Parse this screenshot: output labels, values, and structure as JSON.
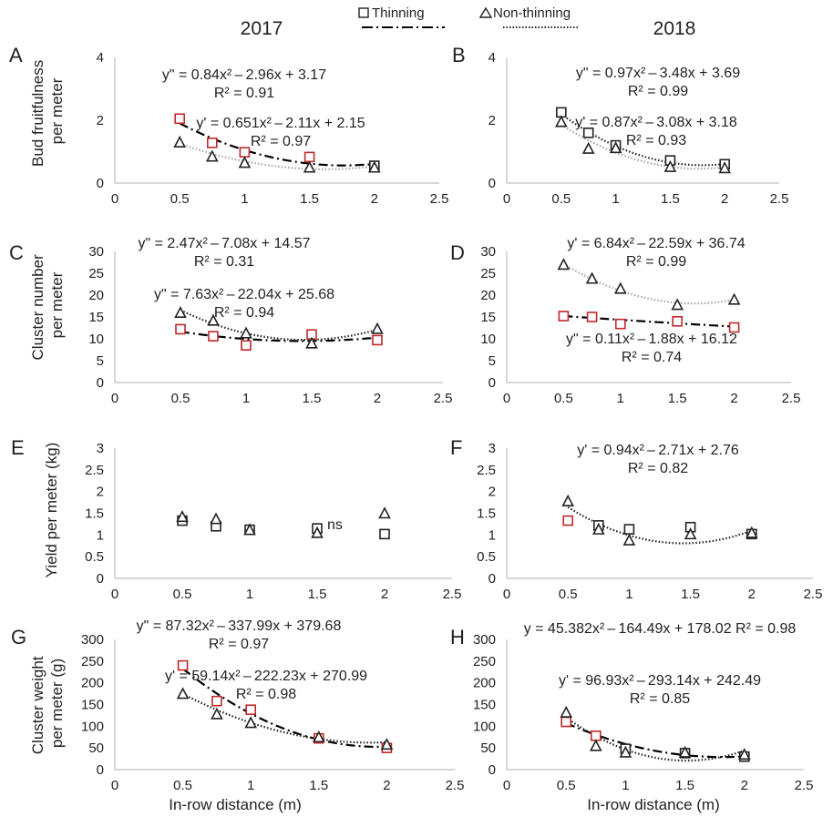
{
  "header": {
    "year_left": "2017",
    "year_right": "2018",
    "legend": [
      {
        "label": "Thinning",
        "marker": "square",
        "line": "dashdot"
      },
      {
        "label": "Non-thinning",
        "marker": "triangle",
        "line": "dotted"
      }
    ]
  },
  "colors": {
    "thinning_highlight": "#c0282a",
    "marker_default": "#222222",
    "trend_thinning": "#000000",
    "trend_nonthinning_grey": "#a6a6a6",
    "trend_nonthinning_dark": "#222222"
  },
  "xlabel": "In-row distance (m)",
  "ylabels": {
    "row1": [
      "Bud fruitfulness",
      "per meter"
    ],
    "row2": [
      "Cluster number",
      "per meter"
    ],
    "row3": [
      "Yield per meter (kg)"
    ],
    "row4": [
      "Cluster weight",
      "per meter (g)"
    ]
  },
  "chart_data": [
    {
      "panel": "A",
      "type": "scatter",
      "xlim": [
        0,
        2.5
      ],
      "ylim": [
        0,
        4
      ],
      "xticks": [
        "0",
        "0.5",
        "1",
        "1.5",
        "2",
        "2.5"
      ],
      "yticks": [
        "0",
        "2",
        "4"
      ],
      "series": [
        {
          "name": "Thinning",
          "marker": "square",
          "x": [
            0.5,
            0.75,
            1,
            1.5,
            2
          ],
          "y": [
            2.05,
            1.28,
            0.98,
            0.83,
            0.55
          ],
          "highlight": [
            true,
            true,
            true,
            true,
            false
          ],
          "trend": {
            "a": 0.84,
            "b": -2.96,
            "c": 3.17,
            "style": "dashdot",
            "color": "#000000"
          }
        },
        {
          "name": "Non-thinning",
          "marker": "triangle",
          "x": [
            0.5,
            0.75,
            1,
            1.5,
            2
          ],
          "y": [
            1.3,
            0.85,
            0.65,
            0.5,
            0.5
          ],
          "trend": {
            "a": 0.651,
            "b": -2.11,
            "c": 2.15,
            "style": "dotted",
            "color": "#a6a6a6"
          }
        }
      ],
      "equations": [
        {
          "eq": "y\" = 0.84x² – 2.96x + 3.17",
          "r2": "R² = 0.91"
        },
        {
          "eq": "y' = 0.651x² – 2.11x + 2.15",
          "r2": "R² = 0.97"
        }
      ]
    },
    {
      "panel": "B",
      "type": "scatter",
      "xlim": [
        0,
        2.5
      ],
      "ylim": [
        0,
        4
      ],
      "xticks": [
        "0",
        "0.5",
        "1",
        "1.5",
        "2",
        "2.5"
      ],
      "yticks": [
        "0",
        "2",
        "4"
      ],
      "series": [
        {
          "name": "Thinning",
          "marker": "square",
          "x": [
            0.5,
            0.75,
            1,
            1.5,
            2
          ],
          "y": [
            2.25,
            1.6,
            1.2,
            0.72,
            0.6
          ],
          "trend": {
            "a": 0.97,
            "b": -3.48,
            "c": 3.69,
            "style": "dotted",
            "color": "#222222"
          }
        },
        {
          "name": "Non-thinning",
          "marker": "triangle",
          "x": [
            0.5,
            0.75,
            1,
            1.5,
            2
          ],
          "y": [
            1.95,
            1.1,
            1.12,
            0.52,
            0.48
          ],
          "trend": {
            "a": 0.87,
            "b": -3.08,
            "c": 3.18,
            "style": "dotted",
            "color": "#a6a6a6"
          }
        }
      ],
      "equations": [
        {
          "eq": "y\" = 0.97x² – 3.48x + 3.69",
          "r2": "R² = 0.99"
        },
        {
          "eq": "y' = 0.87x² – 3.08x + 3.18",
          "r2": "R² = 0.93"
        }
      ]
    },
    {
      "panel": "C",
      "type": "scatter",
      "xlim": [
        0,
        2.5
      ],
      "ylim": [
        0,
        30
      ],
      "xticks": [
        "0",
        "0.5",
        "1",
        "1.5",
        "2",
        "2.5"
      ],
      "yticks": [
        "0",
        "5",
        "10",
        "15",
        "20",
        "25",
        "30"
      ],
      "series": [
        {
          "name": "Thinning",
          "marker": "square",
          "x": [
            0.5,
            0.75,
            1,
            1.5,
            2
          ],
          "y": [
            12.2,
            10.6,
            8.5,
            11,
            9.7
          ],
          "highlight": [
            true,
            true,
            true,
            true,
            true
          ],
          "trend": {
            "a": 2.47,
            "b": -7.08,
            "c": 14.57,
            "style": "dashdot",
            "color": "#000000"
          }
        },
        {
          "name": "Non-thinning",
          "marker": "triangle",
          "x": [
            0.5,
            0.75,
            1,
            1.5,
            2
          ],
          "y": [
            16,
            14.2,
            11.3,
            9,
            12.3
          ],
          "trend": {
            "a": 7.63,
            "b": -22.04,
            "c": 25.68,
            "style": "dotted",
            "color": "#222222"
          }
        }
      ],
      "equations": [
        {
          "eq": "y\" = 2.47x² – 7.08x + 14.57",
          "r2": "R² = 0.31"
        },
        {
          "eq": "y\" = 7.63x² – 22.04x + 25.68",
          "r2": "R² = 0.94"
        }
      ]
    },
    {
      "panel": "D",
      "type": "scatter",
      "xlim": [
        0,
        2.5
      ],
      "ylim": [
        0,
        30
      ],
      "xticks": [
        "0",
        "0.5",
        "1",
        "1.5",
        "2",
        "2.5"
      ],
      "yticks": [
        "0",
        "5",
        "10",
        "15",
        "20",
        "25",
        "30"
      ],
      "series": [
        {
          "name": "Thinning",
          "marker": "square",
          "x": [
            0.5,
            0.75,
            1,
            1.5,
            2
          ],
          "y": [
            15.2,
            15,
            13.4,
            14,
            12.6
          ],
          "highlight": [
            true,
            true,
            true,
            true,
            true
          ],
          "trend": {
            "a": 0.11,
            "b": -1.88,
            "c": 16.12,
            "style": "dashdot",
            "color": "#000000"
          }
        },
        {
          "name": "Non-thinning",
          "marker": "triangle",
          "x": [
            0.5,
            0.75,
            1,
            1.5,
            2
          ],
          "y": [
            27,
            23.8,
            21.5,
            17.8,
            19
          ],
          "trend": {
            "a": 6.84,
            "b": -22.59,
            "c": 36.74,
            "style": "dotted",
            "color": "#a6a6a6"
          }
        }
      ],
      "equations": [
        {
          "eq": "y' = 6.84x² – 22.59x + 36.74",
          "r2": "R² = 0.99"
        },
        {
          "eq": "y\" = 0.11x² – 1.88x + 16.12",
          "r2": "R² = 0.74"
        }
      ]
    },
    {
      "panel": "E",
      "type": "scatter",
      "xlim": [
        0,
        2.5
      ],
      "ylim": [
        0,
        3
      ],
      "xticks": [
        "0",
        "0.5",
        "1",
        "1.5",
        "2",
        "2.5"
      ],
      "yticks": [
        "0",
        "0.5",
        "1",
        "1.5",
        "2",
        "2.5",
        "3"
      ],
      "series": [
        {
          "name": "Thinning",
          "marker": "square",
          "x": [
            0.5,
            0.75,
            1,
            1.5,
            2
          ],
          "y": [
            1.33,
            1.2,
            1.12,
            1.15,
            1.02
          ]
        },
        {
          "name": "Non-thinning",
          "marker": "triangle",
          "x": [
            0.5,
            0.75,
            1,
            1.5,
            2
          ],
          "y": [
            1.42,
            1.37,
            1.12,
            1.05,
            1.5
          ]
        }
      ],
      "annotation": "ns",
      "equations": []
    },
    {
      "panel": "F",
      "type": "scatter",
      "xlim": [
        0,
        2.5
      ],
      "ylim": [
        0,
        3
      ],
      "xticks": [
        "0",
        "0.5",
        "1",
        "1.5",
        "2",
        "2.5"
      ],
      "yticks": [
        "0",
        "0.5",
        "1",
        "1.5",
        "2",
        "2.5",
        "3"
      ],
      "series": [
        {
          "name": "Thinning",
          "marker": "square",
          "x": [
            0.5,
            0.75,
            1,
            1.5,
            2
          ],
          "y": [
            1.33,
            1.22,
            1.13,
            1.18,
            1.02
          ],
          "highlight": [
            true,
            false,
            false,
            false,
            false
          ]
        },
        {
          "name": "Non-thinning",
          "marker": "triangle",
          "x": [
            0.5,
            0.75,
            1,
            1.5,
            2
          ],
          "y": [
            1.78,
            1.13,
            0.88,
            1.02,
            1.05
          ],
          "trend": {
            "a": 0.94,
            "b": -2.71,
            "c": 2.76,
            "style": "dotted",
            "color": "#222222"
          }
        }
      ],
      "equations": [
        {
          "eq": "y' = 0.94x² – 2.71x + 2.76",
          "r2": "R² = 0.82"
        }
      ]
    },
    {
      "panel": "G",
      "type": "scatter",
      "xlim": [
        0,
        2.5
      ],
      "ylim": [
        0,
        300
      ],
      "xticks": [
        "0",
        "0.5",
        "1",
        "1.5",
        "2",
        "2.5"
      ],
      "yticks": [
        "0",
        "50",
        "100",
        "150",
        "200",
        "250",
        "300"
      ],
      "series": [
        {
          "name": "Thinning",
          "marker": "square",
          "x": [
            0.5,
            0.75,
            1,
            1.5,
            2
          ],
          "y": [
            240,
            158,
            138,
            72,
            50
          ],
          "highlight": [
            true,
            true,
            true,
            true,
            true
          ],
          "trend": {
            "a": 87.32,
            "b": -337.99,
            "c": 379.68,
            "style": "dashdot",
            "color": "#000000"
          }
        },
        {
          "name": "Non-thinning",
          "marker": "triangle",
          "x": [
            0.5,
            0.75,
            1,
            1.5,
            2
          ],
          "y": [
            175,
            128,
            108,
            75,
            58
          ],
          "trend": {
            "a": 59.14,
            "b": -222.23,
            "c": 270.99,
            "style": "dotted",
            "color": "#222222"
          }
        }
      ],
      "equations": [
        {
          "eq": "y\" = 87.32x² – 337.99x + 379.68",
          "r2": "R² = 0.97"
        },
        {
          "eq": "y' = 59.14x² – 222.23x + 270.99",
          "r2": "R² = 0.98"
        }
      ]
    },
    {
      "panel": "H",
      "type": "scatter",
      "xlim": [
        0,
        2.5
      ],
      "ylim": [
        0,
        300
      ],
      "xticks": [
        "0",
        "0.5",
        "1",
        "1.5",
        "2",
        "2.5"
      ],
      "yticks": [
        "0",
        "50",
        "100",
        "150",
        "200",
        "250",
        "300"
      ],
      "series": [
        {
          "name": "Thinning",
          "marker": "square",
          "x": [
            0.5,
            0.75,
            1,
            1.5,
            2
          ],
          "y": [
            110,
            78,
            48,
            38,
            30
          ],
          "highlight": [
            true,
            true,
            false,
            false,
            false
          ],
          "trend": {
            "a": 45.382,
            "b": -164.49,
            "c": 178.02,
            "style": "dashdot",
            "color": "#000000"
          }
        },
        {
          "name": "Non-thinning",
          "marker": "triangle",
          "x": [
            0.5,
            0.75,
            1,
            1.5,
            2
          ],
          "y": [
            132,
            55,
            40,
            40,
            35
          ],
          "trend": {
            "a": 96.93,
            "b": -293.14,
            "c": 242.49,
            "style": "dotted",
            "color": "#222222"
          }
        }
      ],
      "equations": [
        {
          "eq": "y = 45.382x² – 164.49x + 178.02 R² = 0.98",
          "r2": ""
        },
        {
          "eq": "y' = 96.93x² – 293.14x + 242.49",
          "r2": "R² = 0.85"
        }
      ]
    }
  ]
}
